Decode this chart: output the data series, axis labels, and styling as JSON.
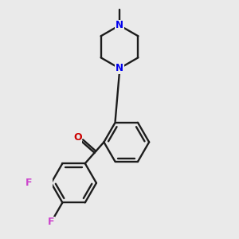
{
  "bg_color": "#eaeaea",
  "bond_color": "#1c1c1c",
  "N_color": "#0000ee",
  "O_color": "#cc0000",
  "F_color": "#cc44cc",
  "lw": 1.7,
  "figsize": [
    3.0,
    3.0
  ],
  "dpi": 100,
  "xlim": [
    -0.5,
    2.0
  ],
  "ylim": [
    -2.2,
    2.2
  ]
}
